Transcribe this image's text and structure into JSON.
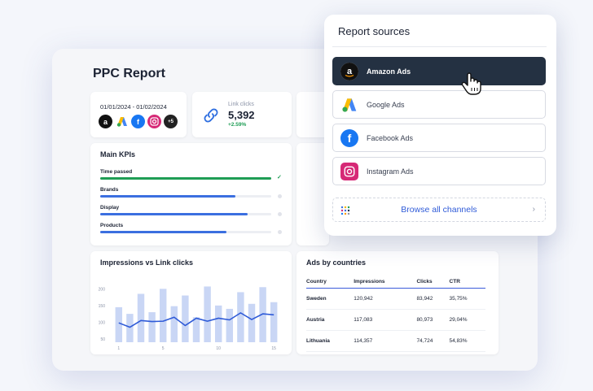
{
  "report": {
    "title": "PPC Report"
  },
  "sources_card": {
    "date_range": "01/01/2024 - 01/02/2024",
    "more_badge": "+5"
  },
  "link_clicks": {
    "label": "Link clicks",
    "value": "5,392",
    "delta": "+2.59%"
  },
  "main_kpis": {
    "title": "Main KPIs",
    "items": [
      {
        "label": "Time passed",
        "progress": 1.0,
        "color": "#1f9d55",
        "complete": true
      },
      {
        "label": "Brands",
        "progress": 0.79,
        "color": "#3b6fe0",
        "complete": false
      },
      {
        "label": "Display",
        "progress": 0.86,
        "color": "#3b6fe0",
        "complete": false
      },
      {
        "label": "Products",
        "progress": 0.74,
        "color": "#3b6fe0",
        "complete": false
      }
    ]
  },
  "impressions_chart": {
    "title": "Impressions vs Link clicks"
  },
  "chart_data": {
    "type": "bar",
    "x": [
      1,
      2,
      3,
      4,
      5,
      6,
      7,
      8,
      9,
      10,
      11,
      12,
      13,
      14,
      15
    ],
    "xticks": [
      "1",
      "5",
      "10",
      "15"
    ],
    "yticks": [
      "50",
      "100",
      "150",
      "200"
    ],
    "ylim": [
      40,
      230
    ],
    "grid": false,
    "series": [
      {
        "kind": "bar",
        "values": [
          145,
          125,
          185,
          130,
          200,
          148,
          180,
          115,
          207,
          150,
          140,
          190,
          155,
          205,
          160
        ]
      },
      {
        "kind": "line",
        "values": [
          98,
          85,
          105,
          102,
          103,
          115,
          90,
          112,
          103,
          112,
          107,
          128,
          108,
          125,
          122
        ]
      }
    ]
  },
  "ads_by_countries": {
    "title": "Ads by countries",
    "columns": [
      "Country",
      "Impressions",
      "Clicks",
      "CTR"
    ],
    "rows": [
      [
        "Sweden",
        "120,942",
        "83,942",
        "35,75%"
      ],
      [
        "Austria",
        "117,083",
        "80,973",
        "29,04%"
      ],
      [
        "Lithuania",
        "114,357",
        "74,724",
        "54,83%"
      ]
    ]
  },
  "report_sources": {
    "title": "Report sources",
    "items": [
      {
        "label": "Amazon Ads",
        "icon": "amazon-icon",
        "active": true
      },
      {
        "label": "Google Ads",
        "icon": "google-ads-icon",
        "active": false
      },
      {
        "label": "Facebook Ads",
        "icon": "facebook-icon",
        "active": false
      },
      {
        "label": "Instagram Ads",
        "icon": "instagram-icon",
        "active": false
      }
    ],
    "browse_label": "Browse all channels"
  }
}
